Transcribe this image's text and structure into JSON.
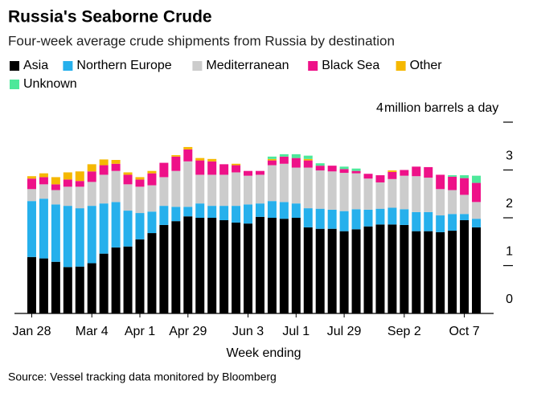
{
  "chart_data": {
    "type": "bar",
    "stacked": true,
    "title": "Russia's Seaborne Crude",
    "subtitle": "Four-week average crude shipments from Russia by destination",
    "y_label": "million barrels a day",
    "x_label": "Week ending",
    "source": "Source: Vessel tracking data monitored by Bloomberg",
    "categories": [
      "Jan 28",
      null,
      null,
      null,
      null,
      "Mar 4",
      null,
      null,
      null,
      "Apr 1",
      null,
      null,
      null,
      "Apr 29",
      null,
      null,
      null,
      null,
      "Jun 3",
      null,
      null,
      null,
      "Jul 1",
      null,
      null,
      null,
      "Jul 29",
      null,
      null,
      null,
      null,
      "Sep 2",
      null,
      null,
      null,
      null,
      "Oct 7",
      null
    ],
    "series": [
      {
        "name": "Asia",
        "color": "#000000",
        "values": [
          1.18,
          1.15,
          1.08,
          0.97,
          0.98,
          1.05,
          1.25,
          1.38,
          1.4,
          1.55,
          1.68,
          1.85,
          1.93,
          2.03,
          2.0,
          2.0,
          1.95,
          1.9,
          1.88,
          2.02,
          2.0,
          1.98,
          2.0,
          1.8,
          1.77,
          1.77,
          1.72,
          1.76,
          1.82,
          1.86,
          1.86,
          1.85,
          1.72,
          1.72,
          1.7,
          1.73,
          1.95,
          1.8
        ]
      },
      {
        "name": "Northern Europe",
        "color": "#26b0ec",
        "values": [
          1.17,
          1.25,
          1.2,
          1.28,
          1.22,
          1.2,
          1.05,
          0.95,
          0.75,
          0.55,
          0.45,
          0.4,
          0.3,
          0.2,
          0.3,
          0.25,
          0.3,
          0.35,
          0.4,
          0.28,
          0.35,
          0.35,
          0.3,
          0.4,
          0.42,
          0.4,
          0.42,
          0.42,
          0.35,
          0.33,
          0.35,
          0.33,
          0.4,
          0.4,
          0.35,
          0.35,
          0.13,
          0.18
        ]
      },
      {
        "name": "Mediterranean",
        "color": "#cccccc",
        "values": [
          0.25,
          0.3,
          0.3,
          0.4,
          0.45,
          0.5,
          0.6,
          0.65,
          0.55,
          0.55,
          0.55,
          0.6,
          0.75,
          0.95,
          0.6,
          0.65,
          0.65,
          0.7,
          0.6,
          0.6,
          0.75,
          0.8,
          0.75,
          0.85,
          0.8,
          0.8,
          0.8,
          0.75,
          0.65,
          0.55,
          0.6,
          0.7,
          0.75,
          0.72,
          0.55,
          0.5,
          0.4,
          0.35
        ]
      },
      {
        "name": "Black Sea",
        "color": "#ee1188",
        "values": [
          0.22,
          0.15,
          0.12,
          0.15,
          0.12,
          0.22,
          0.2,
          0.15,
          0.2,
          0.15,
          0.25,
          0.3,
          0.3,
          0.25,
          0.3,
          0.28,
          0.22,
          0.15,
          0.1,
          0.08,
          0.1,
          0.15,
          0.2,
          0.15,
          0.1,
          0.12,
          0.08,
          0.05,
          0.1,
          0.15,
          0.15,
          0.12,
          0.2,
          0.22,
          0.3,
          0.28,
          0.35,
          0.4
        ]
      },
      {
        "name": "Other",
        "color": "#f5b800",
        "values": [
          0.05,
          0.08,
          0.15,
          0.15,
          0.2,
          0.15,
          0.12,
          0.08,
          0.05,
          0.05,
          0.05,
          0,
          0.03,
          0.05,
          0.05,
          0.05,
          0,
          0.03,
          0,
          0,
          0.03,
          0,
          0,
          0.03,
          0,
          0,
          0,
          0,
          0,
          0,
          0.03,
          0,
          0,
          0,
          0,
          0,
          0,
          0
        ]
      },
      {
        "name": "Unknown",
        "color": "#4de89a",
        "values": [
          0,
          0,
          0,
          0,
          0,
          0,
          0,
          0,
          0,
          0,
          0,
          0,
          0,
          0,
          0,
          0,
          0,
          0,
          0,
          0,
          0.05,
          0.05,
          0.08,
          0.07,
          0.05,
          0,
          0.05,
          0.05,
          0,
          0,
          0,
          0,
          0,
          0,
          0,
          0.03,
          0.06,
          0.15
        ]
      }
    ],
    "ylim": [
      0,
      4
    ],
    "yticks": [
      0,
      1,
      2,
      3,
      4
    ]
  }
}
